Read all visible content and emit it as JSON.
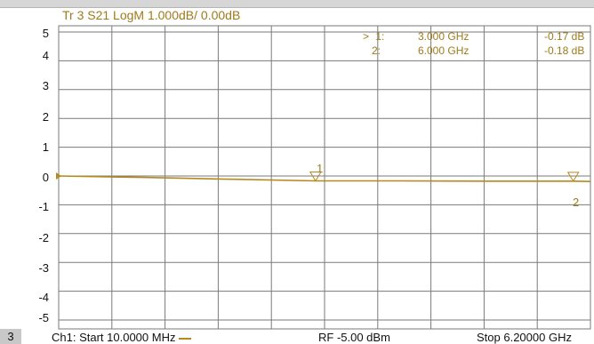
{
  "trace": {
    "header": "Tr 3  S21 LogM 1.000dB/  0.00dB"
  },
  "y_axis": {
    "labels": [
      "5",
      "4",
      "3",
      "2",
      "1",
      "0",
      "-1",
      "-2",
      "-3",
      "-4",
      "-5"
    ]
  },
  "markers": [
    {
      "active": ">",
      "id": "1:",
      "freq": "3.000  GHz",
      "value": "-0.17 dB",
      "symbol_label": "1"
    },
    {
      "active": "",
      "id": "2:",
      "freq": "6.000  GHz",
      "value": "-0.18 dB",
      "symbol_label": "2"
    }
  ],
  "footer": {
    "channel_number": "3",
    "start": "Ch1:  Start  10.0000 MHz",
    "rf": "RF  -5.00 dBm",
    "stop": "Stop  6.20000 GHz"
  },
  "colors": {
    "trace": "#b58a1c",
    "grid": "#7a7a7a",
    "text": "#a07a1a"
  },
  "chart_data": {
    "type": "line",
    "ylabel": "",
    "ylim": [
      -5,
      5
    ],
    "x": [
      0.01,
      1.0,
      2.0,
      3.0,
      4.0,
      5.0,
      6.0,
      6.2
    ],
    "series": [
      {
        "values": [
          0.0,
          -0.05,
          -0.11,
          -0.17,
          -0.17,
          -0.18,
          -0.18,
          -0.19
        ]
      }
    ]
  }
}
